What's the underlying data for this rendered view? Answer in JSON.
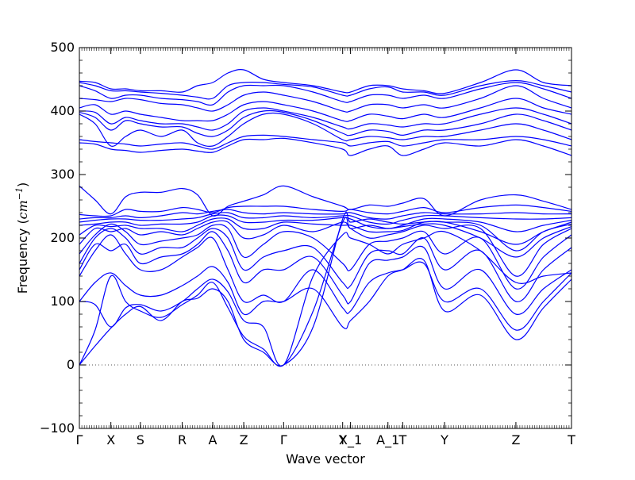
{
  "chart_data": {
    "type": "line",
    "title": "",
    "xlabel": "Wave vector",
    "ylabel_prefix": "Frequency (",
    "ylabel_unit_base": "cm",
    "ylabel_unit_exp": "−1",
    "ylabel_suffix": ")",
    "ylim": [
      -100,
      500
    ],
    "yticks": [
      -100,
      0,
      100,
      200,
      300,
      400,
      500
    ],
    "xlim": [
      0,
      1
    ],
    "grid": false,
    "zero_line": "dotted",
    "colors": {
      "bands": "#0000ff",
      "axes": "#000000",
      "zero_line": "#555555"
    },
    "kpoints": [
      {
        "label": "Γ",
        "x": 0.0
      },
      {
        "label": "X",
        "x": 0.064
      },
      {
        "label": "S",
        "x": 0.124
      },
      {
        "label": "R",
        "x": 0.209
      },
      {
        "label": "A",
        "x": 0.271
      },
      {
        "label": "Z",
        "x": 0.334
      },
      {
        "label": "Γ",
        "x": 0.415
      },
      {
        "label": "Y",
        "x": 0.535
      },
      {
        "label": "X_1",
        "x": 0.551
      },
      {
        "label": "A_1",
        "x": 0.627
      },
      {
        "label": "T",
        "x": 0.657
      },
      {
        "label": "Y",
        "x": 0.742
      },
      {
        "label": "Z",
        "x": 0.887
      },
      {
        "label": "T",
        "x": 1.0
      }
    ],
    "band_x": [
      0,
      0.032,
      0.064,
      0.094,
      0.124,
      0.166,
      0.209,
      0.24,
      0.271,
      0.302,
      0.334,
      0.374,
      0.415,
      0.475,
      0.535,
      0.551,
      0.589,
      0.627,
      0.657,
      0.7,
      0.742,
      0.815,
      0.887,
      0.943,
      1.0
    ],
    "series": [
      {
        "values": [
          0,
          30,
          58,
          80,
          92,
          70,
          100,
          105,
          120,
          100,
          40,
          20,
          0,
          60,
          230,
          225,
          230,
          225,
          222,
          225,
          225,
          210,
          190,
          210,
          225
        ]
      },
      {
        "values": [
          0,
          55,
          140,
          100,
          85,
          75,
          95,
          110,
          130,
          90,
          45,
          25,
          0,
          85,
          225,
          215,
          220,
          215,
          218,
          222,
          220,
          200,
          170,
          200,
          218
        ]
      },
      {
        "values": [
          100,
          95,
          60,
          90,
          95,
          85,
          100,
          120,
          135,
          115,
          70,
          60,
          0,
          140,
          205,
          200,
          190,
          175,
          190,
          200,
          210,
          180,
          130,
          140,
          145
        ]
      },
      {
        "values": [
          100,
          130,
          145,
          125,
          110,
          110,
          125,
          140,
          155,
          130,
          80,
          100,
          100,
          120,
          60,
          70,
          100,
          140,
          150,
          165,
          85,
          110,
          40,
          90,
          135
        ]
      },
      {
        "values": [
          140,
          180,
          205,
          175,
          150,
          150,
          170,
          185,
          200,
          150,
          100,
          110,
          100,
          150,
          90,
          85,
          130,
          145,
          150,
          160,
          100,
          120,
          55,
          100,
          145
        ]
      },
      {
        "values": [
          150,
          190,
          180,
          190,
          160,
          170,
          175,
          190,
          210,
          180,
          130,
          150,
          150,
          170,
          110,
          100,
          160,
          165,
          170,
          185,
          120,
          150,
          80,
          120,
          150
        ]
      },
      {
        "values": [
          160,
          200,
          215,
          200,
          175,
          185,
          185,
          200,
          215,
          200,
          150,
          170,
          180,
          185,
          130,
          125,
          175,
          180,
          175,
          200,
          150,
          180,
          100,
          150,
          185
        ]
      },
      {
        "values": [
          175,
          205,
          222,
          210,
          190,
          195,
          200,
          205,
          220,
          215,
          170,
          190,
          210,
          200,
          160,
          150,
          190,
          195,
          200,
          210,
          175,
          200,
          120,
          170,
          205
        ]
      },
      {
        "values": [
          190,
          215,
          210,
          215,
          205,
          210,
          205,
          215,
          225,
          225,
          200,
          205,
          220,
          210,
          225,
          215,
          200,
          205,
          210,
          220,
          215,
          215,
          140,
          190,
          215
        ]
      },
      {
        "values": [
          205,
          220,
          218,
          220,
          215,
          215,
          210,
          220,
          230,
          230,
          215,
          215,
          225,
          222,
          220,
          220,
          210,
          210,
          212,
          225,
          225,
          220,
          180,
          210,
          222
        ]
      },
      {
        "values": [
          220,
          222,
          225,
          225,
          220,
          222,
          222,
          225,
          235,
          235,
          225,
          225,
          228,
          228,
          232,
          230,
          218,
          215,
          220,
          230,
          230,
          225,
          210,
          220,
          228
        ]
      },
      {
        "values": [
          225,
          228,
          230,
          230,
          228,
          228,
          230,
          232,
          238,
          240,
          232,
          232,
          235,
          232,
          235,
          235,
          225,
          222,
          228,
          235,
          235,
          232,
          230,
          230,
          232
        ]
      },
      {
        "values": [
          230,
          232,
          232,
          235,
          232,
          235,
          240,
          238,
          242,
          245,
          240,
          238,
          240,
          238,
          238,
          240,
          232,
          230,
          235,
          240,
          238,
          238,
          240,
          238,
          238
        ]
      },
      {
        "values": [
          237,
          235,
          235,
          245,
          242,
          242,
          248,
          245,
          240,
          248,
          250,
          250,
          250,
          245,
          242,
          245,
          240,
          238,
          242,
          248,
          240,
          248,
          252,
          248,
          242
        ]
      },
      {
        "values": [
          282,
          260,
          238,
          265,
          272,
          272,
          278,
          268,
          235,
          250,
          258,
          268,
          282,
          265,
          250,
          245,
          252,
          250,
          255,
          262,
          235,
          260,
          268,
          258,
          245
        ]
      },
      {
        "values": [
          350,
          348,
          340,
          338,
          335,
          338,
          340,
          337,
          335,
          345,
          355,
          355,
          357,
          350,
          340,
          330,
          340,
          345,
          330,
          340,
          350,
          345,
          355,
          345,
          330
        ]
      },
      {
        "values": [
          355,
          352,
          350,
          348,
          345,
          348,
          350,
          345,
          340,
          350,
          360,
          362,
          360,
          355,
          350,
          345,
          350,
          352,
          345,
          350,
          355,
          355,
          360,
          355,
          345
        ]
      },
      {
        "values": [
          395,
          380,
          345,
          360,
          370,
          360,
          370,
          350,
          345,
          360,
          380,
          395,
          395,
          380,
          355,
          355,
          360,
          358,
          355,
          360,
          360,
          370,
          380,
          370,
          355
        ]
      },
      {
        "values": [
          398,
          390,
          370,
          385,
          380,
          375,
          375,
          365,
          360,
          370,
          390,
          400,
          398,
          385,
          365,
          362,
          370,
          368,
          362,
          370,
          370,
          380,
          395,
          385,
          370
        ]
      },
      {
        "values": [
          400,
          398,
          380,
          390,
          385,
          380,
          380,
          375,
          370,
          380,
          400,
          405,
          400,
          390,
          375,
          372,
          380,
          378,
          375,
          380,
          380,
          395,
          405,
          395,
          380
        ]
      },
      {
        "values": [
          405,
          410,
          395,
          400,
          395,
          390,
          385,
          385,
          385,
          395,
          410,
          415,
          410,
          400,
          385,
          385,
          395,
          392,
          388,
          395,
          390,
          405,
          420,
          405,
          395
        ]
      },
      {
        "values": [
          420,
          418,
          415,
          420,
          418,
          412,
          410,
          405,
          400,
          410,
          425,
          430,
          425,
          415,
          400,
          400,
          410,
          410,
          405,
          410,
          405,
          420,
          440,
          420,
          405
        ]
      },
      {
        "values": [
          440,
          432,
          420,
          425,
          425,
          420,
          418,
          415,
          410,
          430,
          440,
          440,
          440,
          430,
          415,
          415,
          425,
          425,
          420,
          425,
          420,
          435,
          445,
          435,
          420
        ]
      },
      {
        "values": [
          445,
          440,
          432,
          432,
          430,
          428,
          425,
          422,
          420,
          440,
          445,
          445,
          442,
          438,
          425,
          425,
          435,
          438,
          430,
          430,
          425,
          440,
          448,
          440,
          430
        ]
      },
      {
        "values": [
          447,
          445,
          435,
          435,
          432,
          432,
          430,
          440,
          445,
          460,
          465,
          450,
          445,
          440,
          430,
          430,
          440,
          440,
          435,
          432,
          428,
          445,
          465,
          445,
          440
        ]
      }
    ]
  }
}
